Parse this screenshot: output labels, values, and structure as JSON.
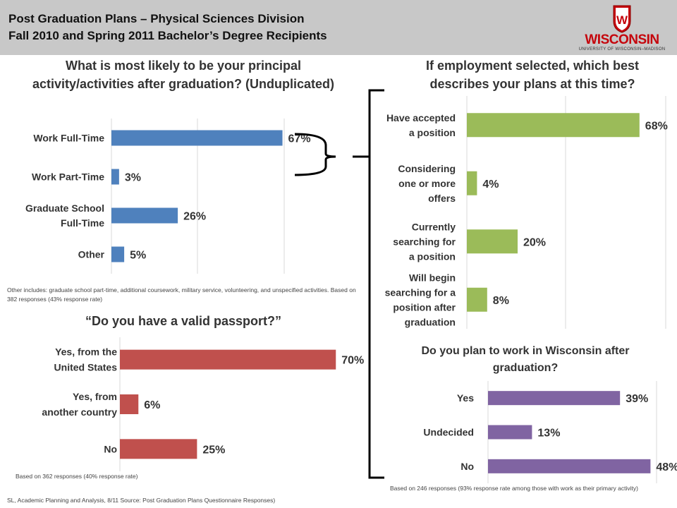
{
  "header": {
    "title": "Post Graduation Plans – Physical Sciences Division",
    "subtitle": "Fall 2010 and Spring 2011 Bachelor’s Degree Recipients",
    "logo_text": "WISCONSIN",
    "logo_sub": "UNIVERSITY OF WISCONSIN–MADISON",
    "logo_crest": "W",
    "logo_color": "#c5050c"
  },
  "chart_data": [
    {
      "id": "activity",
      "type": "bar",
      "orientation": "horizontal",
      "title": "What is most likely to be your principal activity/activities after graduation? (Unduplicated)",
      "categories": [
        [
          "Work Full-Time"
        ],
        [
          "Work Part-Time"
        ],
        [
          "Graduate School",
          "Full-Time"
        ],
        [
          "Other"
        ]
      ],
      "values": [
        67,
        3,
        26,
        5
      ],
      "value_labels": [
        "67%",
        "3%",
        "26%",
        "5%"
      ],
      "color": "#4f81bd",
      "xlim": [
        0,
        100
      ],
      "grid": true,
      "note": "Other includes: graduate school part-time, additional coursework, military service, volunteering, and unspecified activities. Based on 382 responses (43% response rate)"
    },
    {
      "id": "employment",
      "type": "bar",
      "orientation": "horizontal",
      "title": "If employment selected, which best describes your plans at this time?",
      "categories": [
        [
          "Have accepted",
          "a position"
        ],
        [
          "Considering",
          "one or more",
          "offers"
        ],
        [
          "Currently",
          "searching for",
          "a position"
        ],
        [
          "Will begin",
          "searching for a",
          "position after",
          "graduation"
        ]
      ],
      "values": [
        68,
        4,
        20,
        8
      ],
      "value_labels": [
        "68%",
        "4%",
        "20%",
        "8%"
      ],
      "color": "#9bbb59",
      "xlim": [
        0,
        80
      ],
      "grid": true
    },
    {
      "id": "passport",
      "type": "bar",
      "orientation": "horizontal",
      "title": "“Do you have a valid passport?”",
      "categories": [
        [
          "Yes, from the",
          "United States"
        ],
        [
          "Yes, from",
          "another country"
        ],
        [
          "No"
        ]
      ],
      "values": [
        70,
        6,
        25
      ],
      "value_labels": [
        "70%",
        "6%",
        "25%"
      ],
      "color": "#c0504d",
      "xlim": [
        0,
        80
      ],
      "grid": true,
      "note": "Based on 362 responses (40% response rate)"
    },
    {
      "id": "wisconsin",
      "type": "bar",
      "orientation": "horizontal",
      "title": "Do you plan to work in Wisconsin after graduation?",
      "categories": [
        [
          "Yes"
        ],
        [
          "Undecided"
        ],
        [
          "No"
        ]
      ],
      "values": [
        39,
        13,
        48
      ],
      "value_labels": [
        "39%",
        "13%",
        "48%"
      ],
      "color": "#8064a2",
      "xlim": [
        0,
        50
      ],
      "grid": true,
      "note": "Based on 246 responses (93% response rate among those with work as their primary activity)"
    }
  ],
  "footer": {
    "source": "SL, Academic Planning and Analysis, 8/11 Source: Post Graduation Plans Questionnaire Responses)"
  },
  "connector_color": "#000000"
}
